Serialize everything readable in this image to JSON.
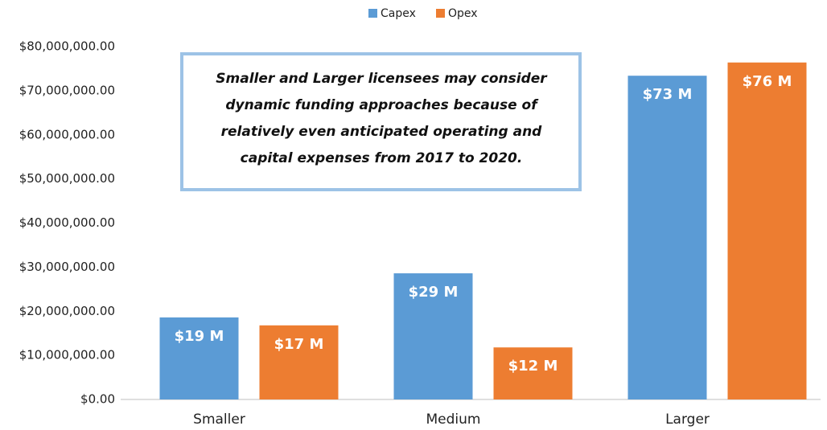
{
  "chart_data": {
    "type": "bar",
    "categories": [
      "Smaller",
      "Medium",
      "Larger"
    ],
    "series": [
      {
        "name": "Capex",
        "color": "#5b9bd5",
        "values": [
          18600000,
          28600000,
          73400000
        ],
        "value_labels": [
          "$19 M",
          "$29 M",
          "$73 M"
        ]
      },
      {
        "name": "Opex",
        "color": "#ed7d31",
        "values": [
          16800000,
          11800000,
          76400000
        ],
        "value_labels": [
          "$17 M",
          "$12 M",
          "$76 M"
        ]
      }
    ],
    "ylim": [
      0,
      80000000
    ],
    "yticks": [
      {
        "value": 0,
        "label": "$0.00"
      },
      {
        "value": 10000000,
        "label": "$10,000,000.00"
      },
      {
        "value": 20000000,
        "label": "$20,000,000.00"
      },
      {
        "value": 30000000,
        "label": "$30,000,000.00"
      },
      {
        "value": 40000000,
        "label": "$40,000,000.00"
      },
      {
        "value": 50000000,
        "label": "$50,000,000.00"
      },
      {
        "value": 60000000,
        "label": "$60,000,000.00"
      },
      {
        "value": 70000000,
        "label": "$70,000,000.00"
      },
      {
        "value": 80000000,
        "label": "$80,000,000.00"
      }
    ],
    "grid": false,
    "legend": "top",
    "annotation": [
      "Smaller and Larger licensees may consider",
      "dynamic funding approaches because of",
      "relatively even anticipated operating and",
      "capital expenses from 2017 to 2020."
    ]
  }
}
